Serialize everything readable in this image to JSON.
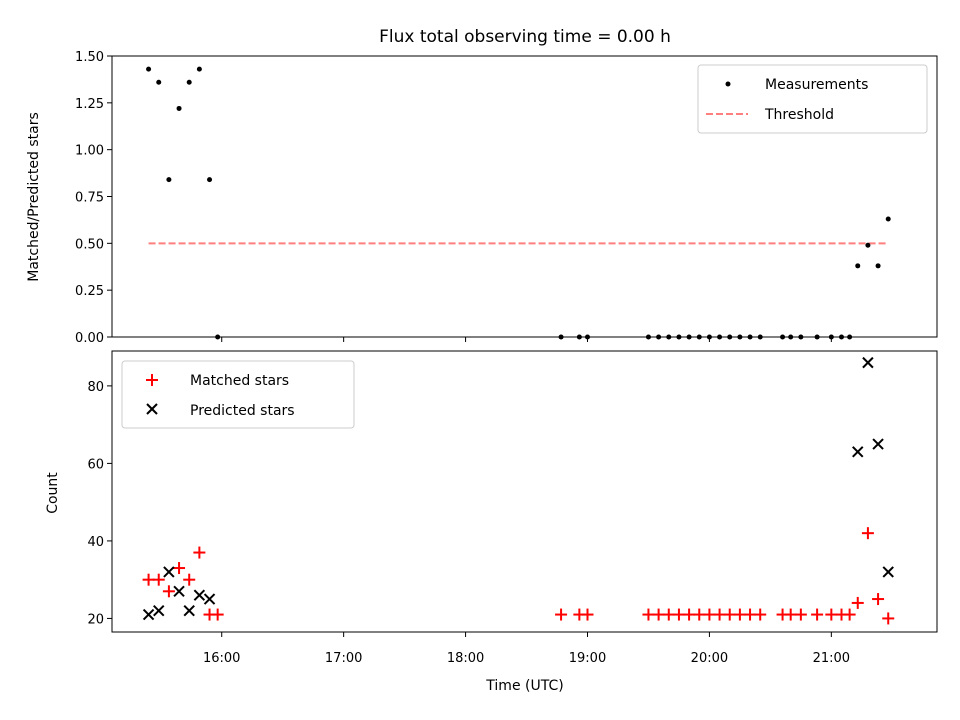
{
  "chart_data": [
    {
      "type": "scatter",
      "title": "Flux total observing time = 0.00 h",
      "xlabel": "",
      "ylabel": "Matched/Predicted stars",
      "xlim": [
        "15:06",
        "21:52"
      ],
      "ylim": [
        0,
        1.5
      ],
      "yticks": [
        "0.00",
        "0.25",
        "0.50",
        "0.75",
        "1.00",
        "1.25",
        "1.50"
      ],
      "legend_placement": "top-right",
      "grid": false,
      "series": [
        {
          "name": "Measurements",
          "kind": "dot",
          "color": "#000000",
          "points": [
            [
              "15:24",
              1.43
            ],
            [
              "15:29",
              1.36
            ],
            [
              "15:34",
              0.84
            ],
            [
              "15:39",
              1.22
            ],
            [
              "15:44",
              1.36
            ],
            [
              "15:49",
              1.43
            ],
            [
              "15:54",
              0.84
            ],
            [
              "15:58",
              0.0
            ],
            [
              "18:47",
              0.0
            ],
            [
              "18:56",
              0.0
            ],
            [
              "19:00",
              0.0
            ],
            [
              "19:30",
              0.0
            ],
            [
              "19:35",
              0.0
            ],
            [
              "19:40",
              0.0
            ],
            [
              "19:45",
              0.0
            ],
            [
              "19:50",
              0.0
            ],
            [
              "19:55",
              0.0
            ],
            [
              "20:00",
              0.0
            ],
            [
              "20:05",
              0.0
            ],
            [
              "20:10",
              0.0
            ],
            [
              "20:15",
              0.0
            ],
            [
              "20:20",
              0.0
            ],
            [
              "20:25",
              0.0
            ],
            [
              "20:36",
              0.0
            ],
            [
              "20:40",
              0.0
            ],
            [
              "20:45",
              0.0
            ],
            [
              "20:53",
              0.0
            ],
            [
              "21:00",
              0.0
            ],
            [
              "21:05",
              0.0
            ],
            [
              "21:09",
              0.0
            ],
            [
              "21:13",
              0.38
            ],
            [
              "21:18",
              0.49
            ],
            [
              "21:23",
              0.38
            ],
            [
              "21:28",
              0.63
            ]
          ]
        },
        {
          "name": "Threshold",
          "kind": "dashed-line",
          "color": "#ff7f7f",
          "points": [
            [
              "15:24",
              0.5
            ],
            [
              "21:28",
              0.5
            ]
          ]
        }
      ]
    },
    {
      "type": "scatter",
      "title": "",
      "xlabel": "Time (UTC)",
      "ylabel": "Count",
      "xlim": [
        "15:06",
        "21:52"
      ],
      "ylim": [
        16.5,
        89
      ],
      "xticks": [
        "16:00",
        "17:00",
        "18:00",
        "19:00",
        "20:00",
        "21:00"
      ],
      "yticks": [
        "20",
        "40",
        "60",
        "80"
      ],
      "legend_placement": "top-left",
      "grid": false,
      "series": [
        {
          "name": "Matched stars",
          "kind": "plus",
          "color": "#ff0000",
          "points": [
            [
              "15:24",
              30
            ],
            [
              "15:29",
              30
            ],
            [
              "15:34",
              27
            ],
            [
              "15:39",
              33
            ],
            [
              "15:44",
              30
            ],
            [
              "15:49",
              37
            ],
            [
              "15:54",
              21
            ],
            [
              "15:58",
              21
            ],
            [
              "18:47",
              21
            ],
            [
              "18:56",
              21
            ],
            [
              "19:00",
              21
            ],
            [
              "19:30",
              21
            ],
            [
              "19:35",
              21
            ],
            [
              "19:40",
              21
            ],
            [
              "19:45",
              21
            ],
            [
              "19:50",
              21
            ],
            [
              "19:55",
              21
            ],
            [
              "20:00",
              21
            ],
            [
              "20:05",
              21
            ],
            [
              "20:10",
              21
            ],
            [
              "20:15",
              21
            ],
            [
              "20:20",
              21
            ],
            [
              "20:25",
              21
            ],
            [
              "20:36",
              21
            ],
            [
              "20:40",
              21
            ],
            [
              "20:45",
              21
            ],
            [
              "20:53",
              21
            ],
            [
              "21:00",
              21
            ],
            [
              "21:05",
              21
            ],
            [
              "21:09",
              21
            ],
            [
              "21:13",
              24
            ],
            [
              "21:18",
              42
            ],
            [
              "21:23",
              25
            ],
            [
              "21:28",
              20
            ]
          ]
        },
        {
          "name": "Predicted stars",
          "kind": "x",
          "color": "#000000",
          "points": [
            [
              "15:24",
              21
            ],
            [
              "15:29",
              22
            ],
            [
              "15:34",
              32
            ],
            [
              "15:39",
              27
            ],
            [
              "15:44",
              22
            ],
            [
              "15:49",
              26
            ],
            [
              "15:54",
              25
            ],
            [
              "21:13",
              63
            ],
            [
              "21:18",
              86
            ],
            [
              "21:23",
              65
            ],
            [
              "21:28",
              32
            ]
          ]
        }
      ]
    }
  ]
}
